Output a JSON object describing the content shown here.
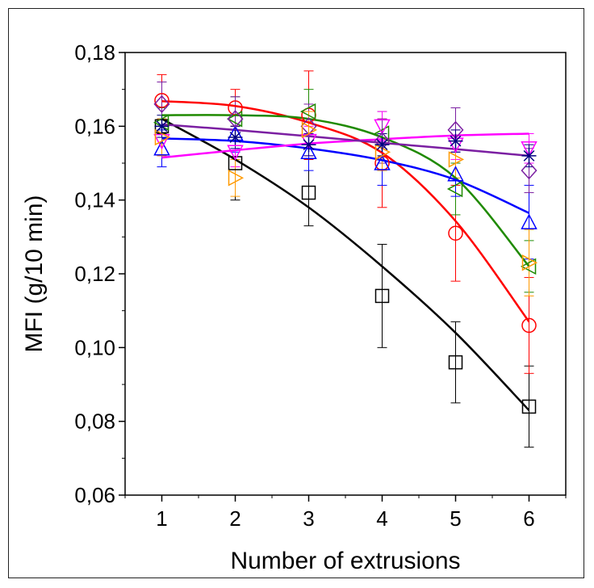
{
  "chart_data": {
    "type": "scatter",
    "title": "",
    "xlabel": "Number of extrusions",
    "ylabel": "MFI (g/10 min)",
    "xlim": [
      0.5,
      6.5
    ],
    "ylim": [
      0.06,
      0.18
    ],
    "xticks": [
      1,
      2,
      3,
      4,
      5,
      6
    ],
    "yticks": [
      0.06,
      0.08,
      0.1,
      0.12,
      0.14,
      0.16,
      0.18
    ],
    "ytick_labels": [
      "0,06",
      "0,08",
      "0,10",
      "0,12",
      "0,14",
      "0,16",
      "0,18"
    ],
    "grid": false,
    "legend": "none",
    "series": [
      {
        "color": "#000000",
        "marker": "square",
        "x": [
          1,
          2,
          3,
          4,
          5,
          6
        ],
        "y": [
          0.16,
          0.15,
          0.142,
          0.114,
          0.096,
          0.084
        ],
        "err": [
          0.002,
          0.01,
          0.009,
          0.014,
          0.011,
          0.011
        ],
        "fit": [
          0.162,
          0.151,
          0.138,
          0.122,
          0.104,
          0.083
        ]
      },
      {
        "color": "#ff0000",
        "marker": "circle",
        "x": [
          1,
          2,
          3,
          4,
          5,
          6
        ],
        "y": [
          0.167,
          0.165,
          0.163,
          0.15,
          0.131,
          0.106
        ],
        "err": [
          0.007,
          0.005,
          0.012,
          0.012,
          0.013,
          0.013
        ],
        "fit": [
          0.1668,
          0.1655,
          0.161,
          0.1528,
          0.1343,
          0.107
        ]
      },
      {
        "color": "#1f8a00",
        "marker": "triangle-left",
        "x": [
          1,
          2,
          3,
          4,
          5,
          6
        ],
        "y": [
          0.161,
          0.162,
          0.164,
          0.158,
          0.143,
          0.122
        ],
        "err": [
          0.004,
          0.006,
          0.006,
          0.006,
          0.007,
          0.007
        ],
        "fit": [
          0.163,
          0.163,
          0.162,
          0.157,
          0.146,
          0.122
        ]
      },
      {
        "color": "#0000ff",
        "marker": "triangle-up",
        "x": [
          1,
          2,
          3,
          4,
          5,
          6
        ],
        "y": [
          0.154,
          0.158,
          0.153,
          0.15,
          0.147,
          0.134
        ],
        "err": [
          0.005,
          0.005,
          0.005,
          0.006,
          0.006,
          0.01
        ],
        "fit": [
          0.1567,
          0.156,
          0.154,
          0.1508,
          0.1455,
          0.1365
        ]
      },
      {
        "color": "#ff00ff",
        "marker": "triangle-down",
        "x": [
          1,
          2,
          3,
          4,
          5,
          6
        ],
        "y": [
          0.156,
          0.153,
          0.156,
          0.16,
          0.155,
          0.154
        ],
        "err": [
          0.004,
          0.004,
          0.004,
          0.004,
          0.004,
          0.004
        ],
        "fit": [
          0.1515,
          0.1535,
          0.1553,
          0.1565,
          0.1575,
          0.158
        ]
      },
      {
        "color": "#7b1fa2",
        "marker": "diamond",
        "x": [
          1,
          2,
          3,
          4,
          5,
          6
        ],
        "y": [
          0.166,
          0.162,
          0.16,
          0.156,
          0.159,
          0.148
        ],
        "err": [
          0.006,
          0.006,
          0.006,
          0.006,
          0.006,
          0.006
        ],
        "fit": [
          0.1605,
          0.159,
          0.1573,
          0.1555,
          0.1538,
          0.152
        ]
      },
      {
        "color": "#ff9900",
        "marker": "triangle-right",
        "x": [
          1,
          2,
          3,
          4,
          5,
          6
        ],
        "y": [
          0.157,
          0.146,
          0.159,
          0.153,
          0.151,
          0.123
        ],
        "err": [
          0.005,
          0.005,
          0.005,
          0.005,
          0.005,
          0.009
        ]
      },
      {
        "color": "#000080",
        "marker": "asterisk",
        "x": [
          1,
          2,
          3,
          4,
          5,
          6
        ],
        "y": [
          0.16,
          0.157,
          0.155,
          0.155,
          0.156,
          0.152
        ],
        "err": [
          0.003,
          0.003,
          0.003,
          0.003,
          0.003,
          0.003
        ]
      }
    ]
  }
}
